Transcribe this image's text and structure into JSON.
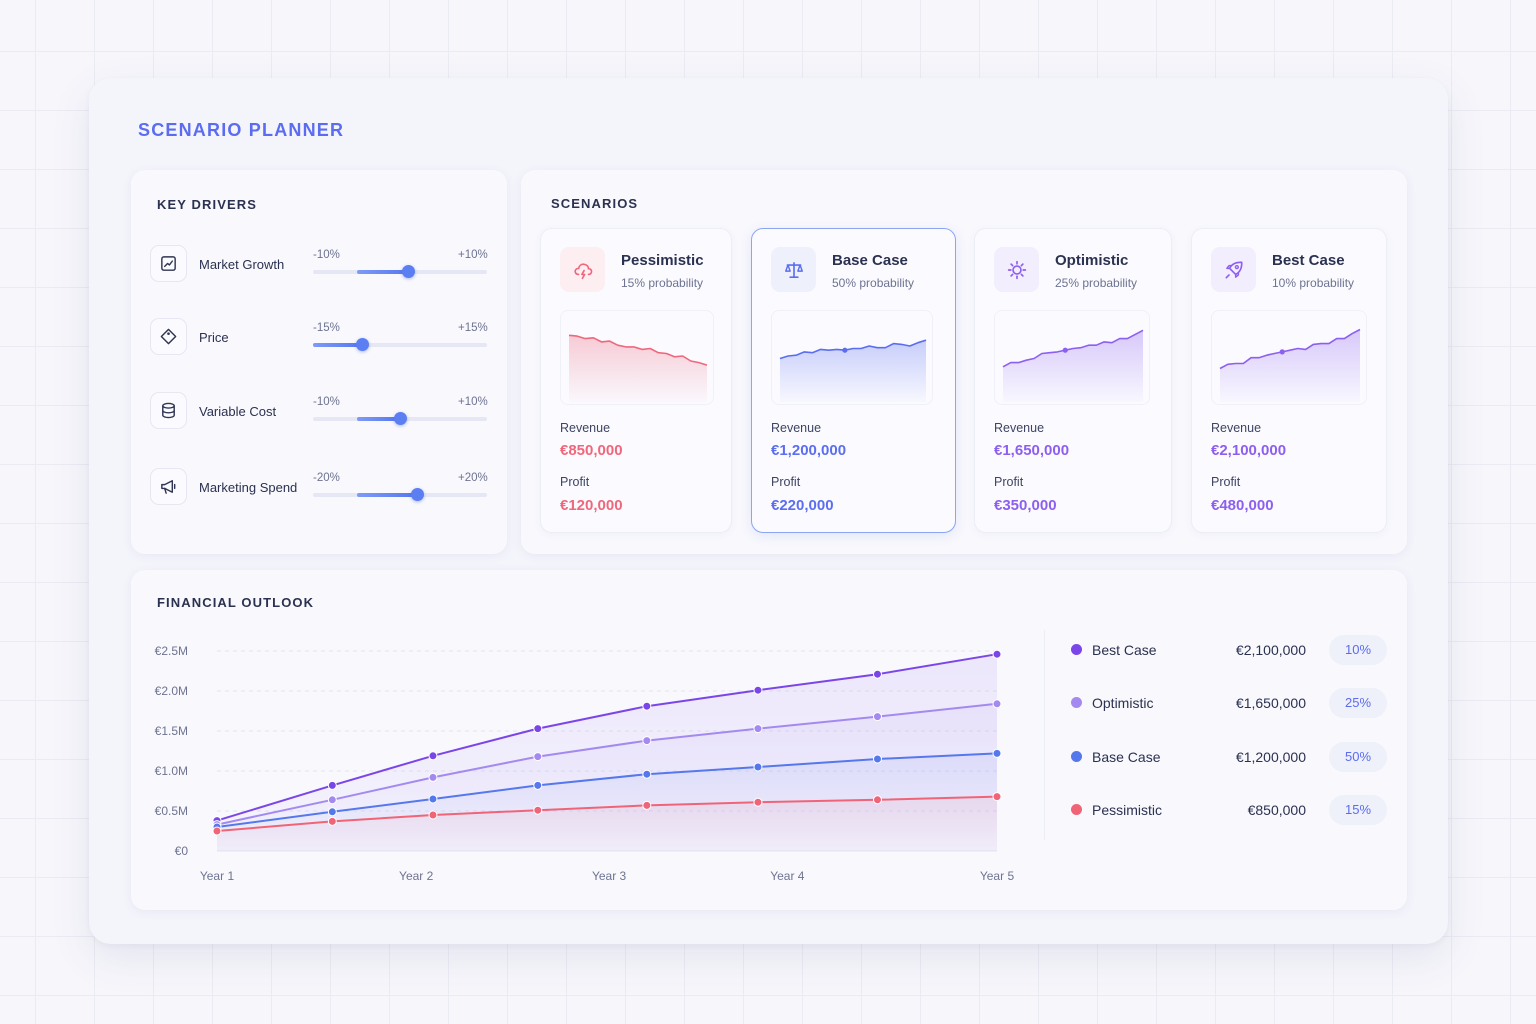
{
  "app": {
    "title": "SCENARIO PLANNER"
  },
  "drivers": {
    "title": "KEY DRIVERS",
    "items": [
      {
        "name": "Market Growth",
        "icon": "trend-chart-icon",
        "min_label": "-10%",
        "max_label": "+10%",
        "range": [
          -10,
          10
        ],
        "low": -5.0,
        "value": 1.0
      },
      {
        "name": "Price",
        "icon": "price-tag-icon",
        "min_label": "-15%",
        "max_label": "+15%",
        "range": [
          -15,
          15
        ],
        "low": -15.0,
        "value": -6.5
      },
      {
        "name": "Variable Cost",
        "icon": "database-icon",
        "min_label": "-10%",
        "max_label": "+10%",
        "range": [
          -10,
          10
        ],
        "low": -5.0,
        "value": 0.0
      },
      {
        "name": "Marketing Spend",
        "icon": "megaphone-icon",
        "min_label": "-20%",
        "max_label": "+20%",
        "range": [
          -20,
          20
        ],
        "low": -10.0,
        "value": 4.0
      }
    ]
  },
  "scenarios": {
    "title": "SCENARIOS",
    "revenue_label": "Revenue",
    "profit_label": "Profit",
    "items": [
      {
        "name": "Pessimistic",
        "probability": "15% probability",
        "icon": "storm-cloud-icon",
        "color": "#f0677c",
        "revenue": "€850,000",
        "profit": "€120,000",
        "selected": false,
        "trend": [
          78,
          77,
          74,
          75,
          70,
          71,
          66,
          64,
          64,
          61,
          62,
          57,
          56,
          52,
          53,
          47,
          45,
          42
        ]
      },
      {
        "name": "Base Case",
        "probability": "50% probability",
        "icon": "balance-scale-icon",
        "color": "#5b6ef0",
        "revenue": "€1,200,000",
        "profit": "€220,000",
        "selected": true,
        "trend": [
          50,
          53,
          54,
          58,
          57,
          61,
          60,
          61,
          60,
          62,
          62,
          65,
          63,
          63,
          68,
          67,
          65,
          69,
          72
        ]
      },
      {
        "name": "Optimistic",
        "probability": "25% probability",
        "icon": "sun-icon",
        "color": "#8d5ff0",
        "revenue": "€1,650,000",
        "profit": "€350,000",
        "selected": false,
        "trend": [
          40,
          45,
          45,
          48,
          50,
          56,
          57,
          58,
          60,
          62,
          63,
          66,
          66,
          70,
          69,
          74,
          74,
          79,
          84
        ]
      },
      {
        "name": "Best Case",
        "probability": "10% probability",
        "icon": "rocket-icon",
        "color": "#8d5ff0",
        "revenue": "€2,100,000",
        "profit": "€480,000",
        "selected": false,
        "trend": [
          38,
          43,
          44,
          44,
          51,
          51,
          54,
          56,
          58,
          60,
          62,
          61,
          67,
          68,
          68,
          74,
          74,
          80,
          85
        ]
      }
    ]
  },
  "outlook": {
    "title": "FINANCIAL OUTLOOK",
    "legend": [
      {
        "name": "Best Case",
        "value": "€2,100,000",
        "pct": "10%",
        "color": "#7b46e8"
      },
      {
        "name": "Optimistic",
        "value": "€1,650,000",
        "pct": "25%",
        "color": "#a48af0"
      },
      {
        "name": "Base Case",
        "value": "€1,200,000",
        "pct": "50%",
        "color": "#5578ec"
      },
      {
        "name": "Pessimistic",
        "value": "€850,000",
        "pct": "15%",
        "color": "#f06478"
      }
    ]
  },
  "chart_data": {
    "type": "line",
    "x": [
      1,
      1.55,
      2.03,
      2.53,
      3.05,
      3.58,
      4.15,
      4.72
    ],
    "x_ticks": [
      "Year 1",
      "Year 2",
      "Year 3",
      "Year 4",
      "Year 5"
    ],
    "y_ticks": [
      "€0",
      "€0.5M",
      "€1.0M",
      "€1.5M",
      "€2.0M",
      "€2.5M"
    ],
    "ylim": [
      0,
      2.5
    ],
    "y_unit": "€M",
    "grid": true,
    "series": [
      {
        "name": "Best Case",
        "color": "#7b46e8",
        "values": [
          0.38,
          0.82,
          1.19,
          1.53,
          1.81,
          2.01,
          2.21,
          2.46
        ]
      },
      {
        "name": "Optimistic",
        "color": "#a48af0",
        "values": [
          0.33,
          0.64,
          0.92,
          1.18,
          1.38,
          1.53,
          1.68,
          1.84
        ]
      },
      {
        "name": "Base Case",
        "color": "#5578ec",
        "values": [
          0.3,
          0.49,
          0.65,
          0.82,
          0.96,
          1.05,
          1.15,
          1.22
        ]
      },
      {
        "name": "Pessimistic",
        "color": "#f06478",
        "values": [
          0.25,
          0.37,
          0.45,
          0.51,
          0.57,
          0.61,
          0.64,
          0.68
        ]
      }
    ]
  }
}
